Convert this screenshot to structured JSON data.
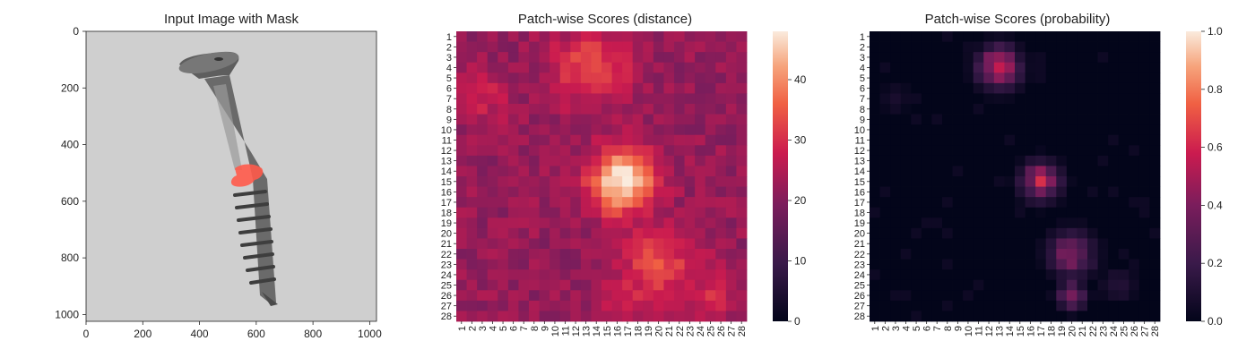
{
  "chart_data": [
    {
      "type": "image",
      "title": "Input Image with Mask",
      "xticks": [
        0,
        200,
        400,
        600,
        800,
        1000
      ],
      "yticks": [
        0,
        200,
        400,
        600,
        800,
        1000
      ],
      "xlim": [
        0,
        1024
      ],
      "ylim": [
        1024,
        0
      ],
      "mask_color": "#ff5a4a"
    },
    {
      "type": "heatmap",
      "title": "Patch-wise Scores (distance)",
      "rows": 28,
      "cols": 28,
      "colormap": "rocket",
      "colorbar": {
        "min": 0,
        "max": 48,
        "ticks": [
          0,
          10,
          20,
          30,
          40
        ]
      },
      "background_level": 22,
      "hotspots": [
        {
          "row": 15,
          "col": 16.5,
          "peak": 48,
          "radius": 2.2
        },
        {
          "row": 4,
          "col": 13.5,
          "peak": 33,
          "radius": 2.6
        },
        {
          "row": 23,
          "col": 20,
          "peak": 33,
          "radius": 2.6
        },
        {
          "row": 26,
          "col": 17,
          "peak": 30,
          "radius": 1.6
        },
        {
          "row": 26,
          "col": 25,
          "peak": 30,
          "radius": 1.6
        },
        {
          "row": 7,
          "col": 3,
          "peak": 28,
          "radius": 1.8
        }
      ]
    },
    {
      "type": "heatmap",
      "title": "Patch-wise Scores (probability)",
      "rows": 28,
      "cols": 28,
      "colormap": "rocket",
      "colorbar": {
        "min": 0.0,
        "max": 1.0,
        "ticks": [
          0.0,
          0.2,
          0.4,
          0.6,
          0.8,
          1.0
        ]
      },
      "background_level": 0.0,
      "hotspots": [
        {
          "row": 4,
          "col": 13,
          "peak": 0.62,
          "radius": 1.3
        },
        {
          "row": 15,
          "col": 17,
          "peak": 0.55,
          "radius": 1.2
        },
        {
          "row": 22,
          "col": 20,
          "peak": 0.42,
          "radius": 1.4
        },
        {
          "row": 26,
          "col": 20,
          "peak": 0.4,
          "radius": 0.9
        },
        {
          "row": 25,
          "col": 24.5,
          "peak": 0.15,
          "radius": 1.0
        },
        {
          "row": 7,
          "col": 3,
          "peak": 0.1,
          "radius": 0.8
        }
      ]
    }
  ]
}
